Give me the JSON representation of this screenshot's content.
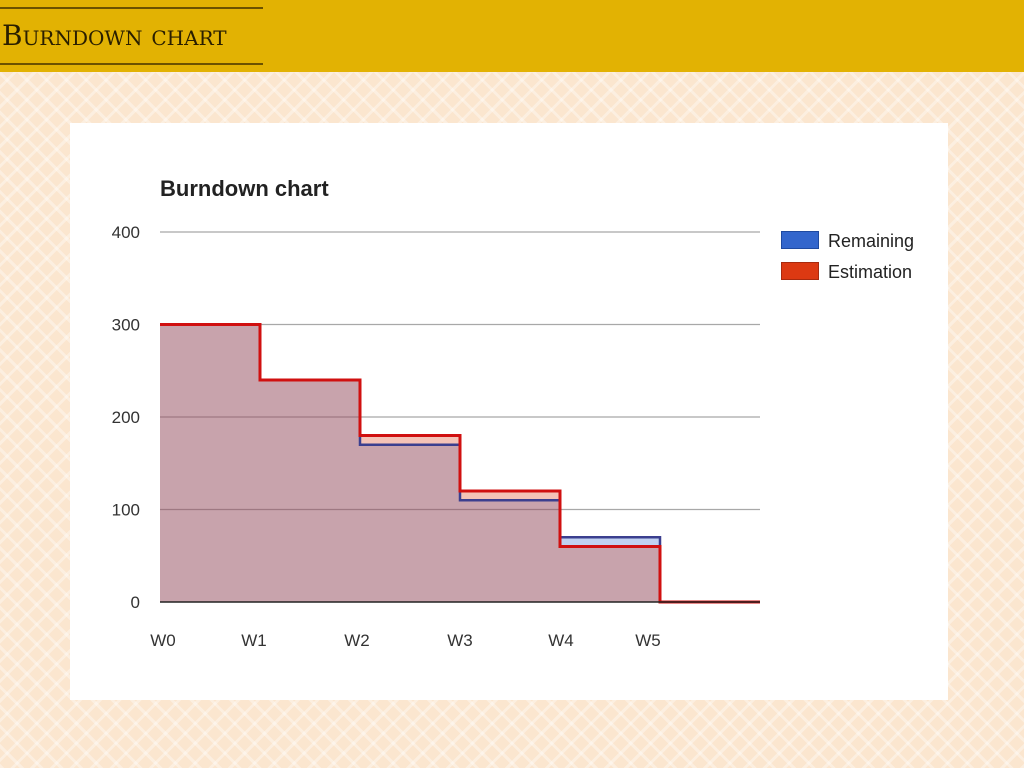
{
  "page": {
    "header_title": "Burndown chart"
  },
  "chart_data": {
    "type": "area",
    "step": true,
    "title": "Burndown chart",
    "xlabel": "",
    "ylabel": "",
    "ylim": [
      0,
      400
    ],
    "yticks": [
      "0",
      "100",
      "200",
      "300",
      "400"
    ],
    "categories": [
      "W0",
      "W1",
      "W2",
      "W3",
      "W4",
      "W5",
      ""
    ],
    "grid": true,
    "legend_position": "right",
    "series": [
      {
        "name": "Remaining",
        "color": "#3366cc",
        "values": [
          300,
          240,
          170,
          110,
          70,
          0,
          0
        ]
      },
      {
        "name": "Estimation",
        "color": "#dc3912",
        "values": [
          300,
          240,
          180,
          120,
          60,
          0,
          0
        ]
      }
    ]
  }
}
